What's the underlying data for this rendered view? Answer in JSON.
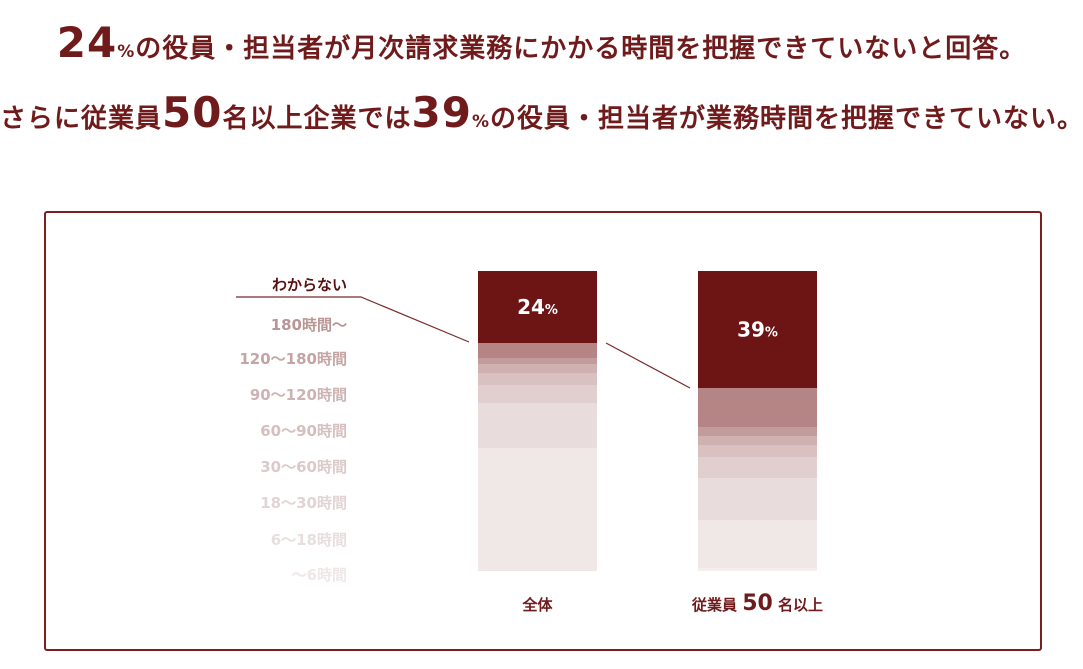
{
  "headline": {
    "line1": {
      "num": "24",
      "pct": "%",
      "rest": "の役員・担当者が月次請求業務にかかる時間を把握できていないと回答。"
    },
    "line2": {
      "pre": "さらに従業員",
      "num1": "50",
      "mid1": "名以上企業では",
      "num2": "39",
      "pct": "%",
      "rest": "の役員・担当者が業務時間を把握できていない。"
    }
  },
  "chart_data": {
    "type": "bar",
    "stacked": true,
    "categories": [
      "全体",
      "従業員50名以上"
    ],
    "category_labels": [
      {
        "text": "全体"
      },
      {
        "prefix": "従業員",
        "num": "50",
        "suffix": "名以上"
      }
    ],
    "series": [
      {
        "name": "わからない",
        "values": [
          24,
          39
        ],
        "color": "#6d1515",
        "labels": [
          "24%",
          "39%"
        ]
      },
      {
        "name": "180時間〜",
        "values": [
          5,
          13
        ],
        "color": "#b58585"
      },
      {
        "name": "120〜180時間",
        "values": [
          2,
          3
        ],
        "color": "#c29b9b"
      },
      {
        "name": "90〜120時間",
        "values": [
          3,
          3
        ],
        "color": "#cfb1b1"
      },
      {
        "name": "60〜90時間",
        "values": [
          4,
          4
        ],
        "color": "#d9c1c1"
      },
      {
        "name": "30〜60時間",
        "values": [
          6,
          7
        ],
        "color": "#e1cfcf"
      },
      {
        "name": "18〜30時間",
        "values": [
          15,
          14
        ],
        "color": "#e8dcdc"
      },
      {
        "name": "6〜18時間",
        "values": [
          41,
          16
        ],
        "color": "#f0e7e7"
      },
      {
        "name": "〜6時間",
        "values": [
          0,
          1
        ],
        "color": "#f6efef"
      }
    ],
    "legend_order": [
      "わからない",
      "180時間〜",
      "120〜180時間",
      "90〜120時間",
      "60〜90時間",
      "30〜60時間",
      "18〜30時間",
      "6〜18時間",
      "〜6時間"
    ],
    "legend_colors": [
      "#5a1010",
      "#b99595",
      "#c4a4a4",
      "#ceb3b3",
      "#d6bfbf",
      "#dccaca",
      "#e2d4d4",
      "#e8dede",
      "#efe6e6"
    ],
    "ylim": [
      0,
      100
    ],
    "unit": "%"
  }
}
